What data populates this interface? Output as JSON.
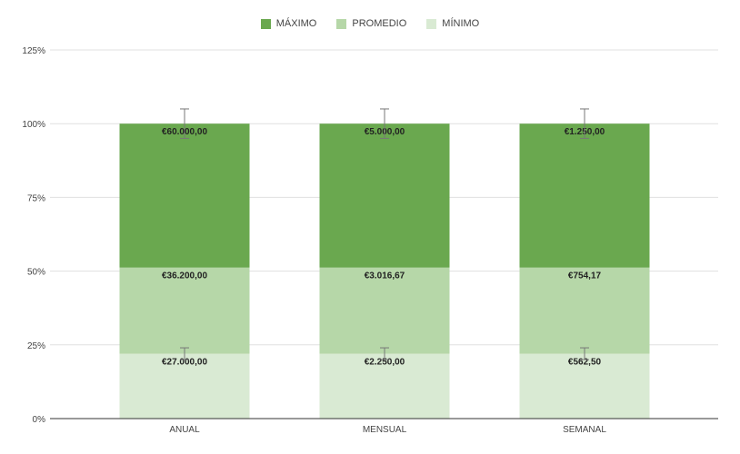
{
  "chart_data": {
    "type": "bar",
    "stacked": true,
    "categories": [
      "ANUAL",
      "MENSUAL",
      "SEMANAL"
    ],
    "series": [
      {
        "name": "MÍNIMO",
        "color": "#d9ead3",
        "values": [
          22,
          22,
          22
        ],
        "labels": [
          "€27.000,00",
          "€2.250,00",
          "€562,50"
        ]
      },
      {
        "name": "PROMEDIO",
        "color": "#b6d7a8",
        "values": [
          29.2,
          29.2,
          29.2
        ],
        "labels": [
          "€36.200,00",
          "€3.016,67",
          "€754,17"
        ]
      },
      {
        "name": "MÁXIMO",
        "color": "#6aa84f",
        "values": [
          48.8,
          48.8,
          48.8
        ],
        "labels": [
          "€60.000,00",
          "€5.000,00",
          "€1.250,00"
        ]
      }
    ],
    "legend_order": [
      "MÁXIMO",
      "PROMEDIO",
      "MÍNIMO"
    ],
    "error_bars": [
      {
        "at": 100,
        "low": 95,
        "high": 105
      },
      {
        "at": 22,
        "low": 20,
        "high": 24
      }
    ],
    "ylim": [
      0,
      125
    ],
    "yticks": [
      0,
      25,
      50,
      75,
      100,
      125
    ],
    "ytick_labels": [
      "0%",
      "25%",
      "50%",
      "75%",
      "100%",
      "125%"
    ],
    "grid": true,
    "legend_position": "top"
  }
}
